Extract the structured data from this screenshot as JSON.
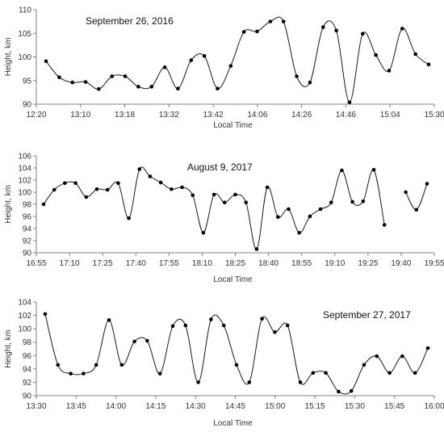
{
  "chart_data": [
    {
      "type": "line",
      "title": "September 26, 2016",
      "xlabel": "Local Time",
      "ylabel": "Height, km",
      "ylim": [
        90,
        110
      ],
      "yticks": [
        90,
        95,
        100,
        105,
        110
      ],
      "xtick_labels": [
        "12:20",
        "13:10",
        "13:18",
        "13:32",
        "13:42",
        "14:06",
        "14:26",
        "14:46",
        "15:04",
        "15:30"
      ],
      "grid": false,
      "series": [
        {
          "values": [
            99.1,
            95.7,
            94.6,
            94.7,
            93.2,
            95.9,
            95.9,
            93.7,
            93.7,
            97.8,
            93.3,
            99.3,
            100.2,
            93.3,
            98.1,
            105.3,
            105.4,
            107.5,
            107.5,
            95.9,
            94.6,
            106.3,
            105.6,
            90.4,
            104.9,
            100.4,
            97.1,
            106.0,
            100.6,
            98.4
          ]
        }
      ]
    },
    {
      "type": "line",
      "title": "August 9, 2017",
      "xlabel": "Local Time",
      "ylabel": "Height, km",
      "ylim": [
        90,
        106
      ],
      "yticks": [
        90,
        92,
        94,
        96,
        98,
        100,
        102,
        104,
        106
      ],
      "xtick_labels": [
        "16:55",
        "17:10",
        "17:25",
        "17:40",
        "17:55",
        "18:10",
        "18:25",
        "18:40",
        "18:55",
        "19:10",
        "19:25",
        "19:40",
        "19:55"
      ],
      "grid": false,
      "series": [
        {
          "values": [
            98.0,
            100.4,
            101.5,
            101.5,
            99.2,
            100.5,
            100.4,
            101.5,
            95.7,
            103.8,
            102.6,
            101.6,
            100.5,
            100.8,
            99.5,
            93.3,
            99.6,
            98.3,
            99.6,
            98.3,
            90.6,
            100.8,
            95.9,
            97.2,
            93.3,
            96.0,
            97.2,
            98.3,
            103.6,
            98.4,
            98.5,
            103.7,
            94.6,
            null,
            100.0,
            97.1,
            101.4
          ]
        }
      ]
    },
    {
      "type": "line",
      "title": "September 27, 2017",
      "xlabel": "Local Time",
      "ylabel": "Height, km",
      "ylim": [
        90,
        104
      ],
      "yticks": [
        90,
        92,
        94,
        96,
        98,
        100,
        102,
        104
      ],
      "xtick_labels": [
        "13:30",
        "13:45",
        "14:00",
        "14:15",
        "14:30",
        "14:45",
        "15:00",
        "15:15",
        "15:30",
        "15:45",
        "16:00"
      ],
      "grid": false,
      "series": [
        {
          "values": [
            102.2,
            94.6,
            93.3,
            93.3,
            94.6,
            101.3,
            94.6,
            98.1,
            98.2,
            93.3,
            100.4,
            100.5,
            92.0,
            101.4,
            100.5,
            94.6,
            92.0,
            101.5,
            99.5,
            100.5,
            92.0,
            93.4,
            93.4,
            90.6,
            90.7,
            94.6,
            95.9,
            93.4,
            95.9,
            93.4,
            97.1
          ]
        }
      ]
    }
  ]
}
